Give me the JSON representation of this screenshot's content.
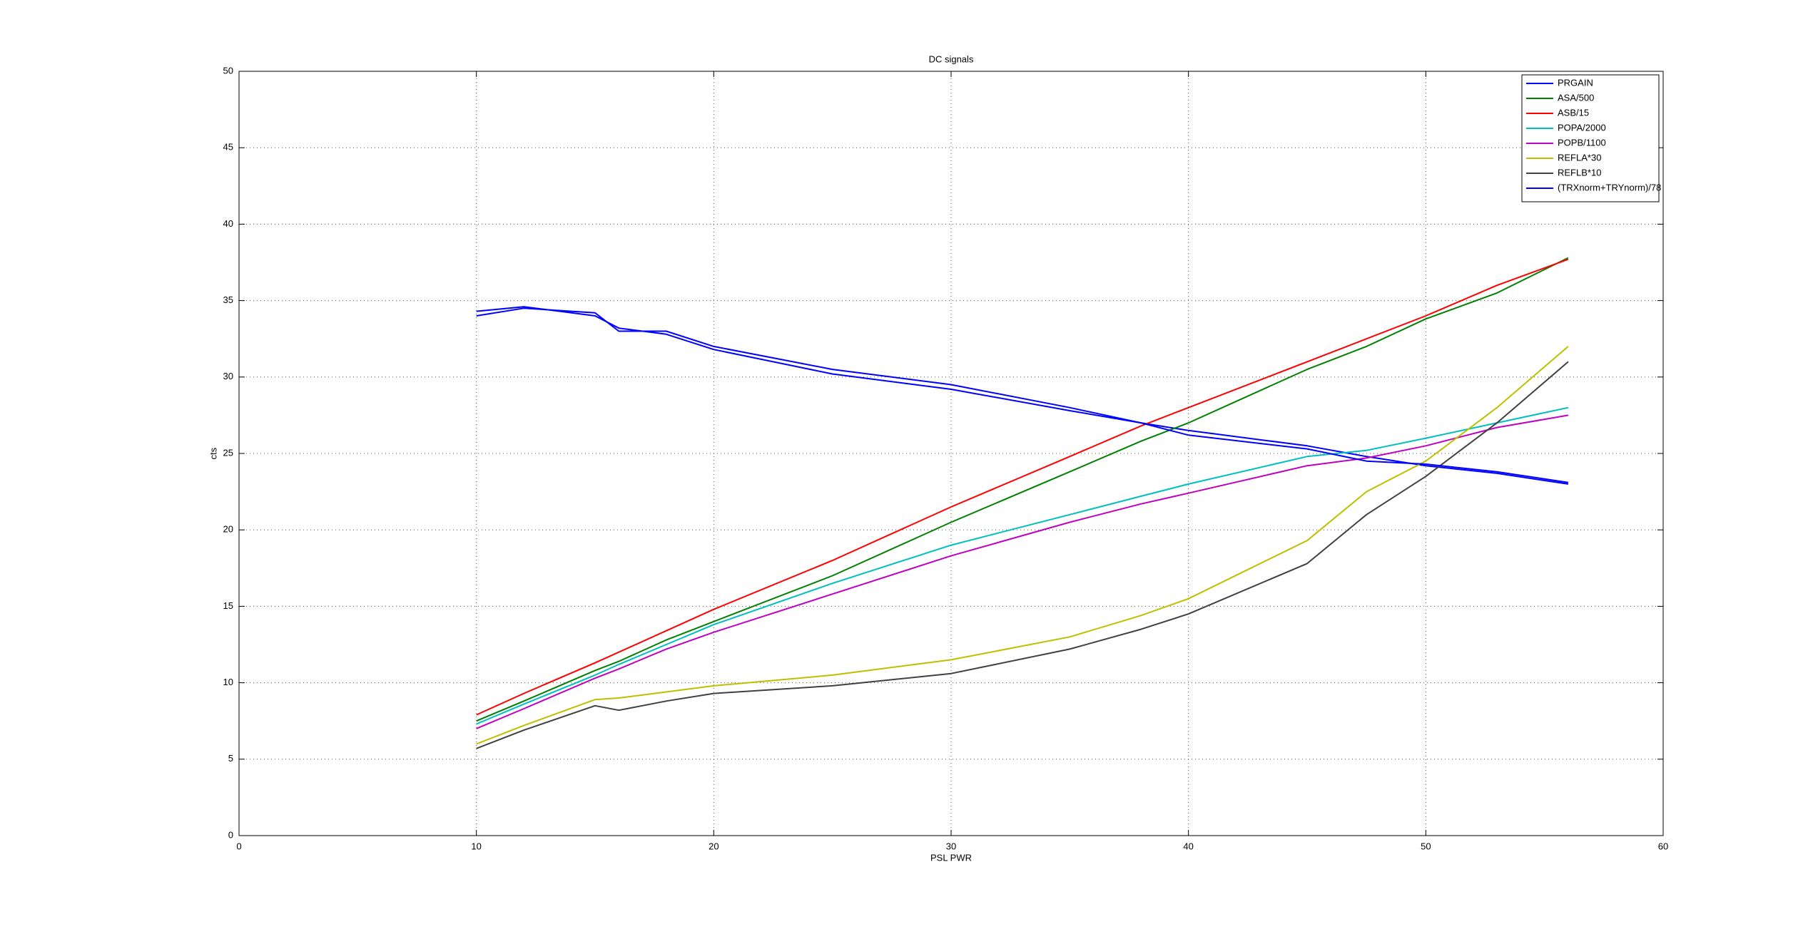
{
  "chart_data": {
    "type": "line",
    "title": "DC signals",
    "x_label": "PSL PWR",
    "y_label": "cts",
    "x": [
      10,
      12,
      15,
      16,
      18,
      20,
      25,
      30,
      35,
      38,
      40,
      45,
      47.5,
      50,
      53,
      56
    ],
    "series": [
      {
        "name": "PRGAIN",
        "color": "#0000ff",
        "values": [
          34,
          34.5,
          34.2,
          33,
          33,
          32,
          30.5,
          29.5,
          28,
          27,
          26.5,
          25.5,
          24.8,
          24.2,
          23.7,
          23
        ]
      },
      {
        "name": "ASA/500",
        "color": "#008000",
        "values": [
          7.5,
          8.8,
          10.8,
          11.4,
          12.8,
          14,
          17,
          20.5,
          23.8,
          25.8,
          27,
          30.5,
          32,
          33.8,
          35.5,
          37.8
        ]
      },
      {
        "name": "ASB/15",
        "color": "#ff0000",
        "values": [
          7.9,
          9.3,
          11.3,
          12,
          13.4,
          14.8,
          18,
          21.5,
          24.8,
          26.8,
          28,
          31,
          32.5,
          34,
          36,
          37.7
        ]
      },
      {
        "name": "POPA/2000",
        "color": "#00bfbf",
        "values": [
          7.3,
          8.6,
          10.5,
          11.2,
          12.5,
          13.8,
          16.5,
          19,
          21,
          22.2,
          23,
          24.8,
          25.2,
          26,
          27,
          28
        ]
      },
      {
        "name": "POPB/1100",
        "color": "#bf00bf",
        "values": [
          7,
          8.3,
          10.3,
          10.9,
          12.2,
          13.3,
          15.8,
          18.3,
          20.5,
          21.7,
          22.4,
          24.2,
          24.7,
          25.5,
          26.7,
          27.5
        ]
      },
      {
        "name": "REFLA*30",
        "color": "#bfbf00",
        "values": [
          6,
          7.2,
          8.9,
          9,
          9.4,
          9.8,
          10.5,
          11.5,
          13,
          14.4,
          15.5,
          19.3,
          22.5,
          24.5,
          28,
          32
        ]
      },
      {
        "name": "REFLB*10",
        "color": "#404040",
        "values": [
          5.7,
          6.9,
          8.5,
          8.2,
          8.8,
          9.3,
          9.8,
          10.6,
          12.2,
          13.5,
          14.5,
          17.8,
          21,
          23.5,
          27,
          31
        ]
      },
      {
        "name": "(TRXnorm+TRYnorm)/78",
        "color": "#0000ff",
        "values": [
          34.3,
          34.6,
          34,
          33.2,
          32.8,
          31.8,
          30.2,
          29.2,
          27.8,
          27,
          26.2,
          25.3,
          24.5,
          24.3,
          23.8,
          23.1
        ]
      }
    ],
    "xlim": [
      0,
      60
    ],
    "xticks": [
      0,
      10,
      20,
      30,
      40,
      50,
      60
    ],
    "ylim": [
      0,
      50
    ],
    "yticks": [
      0,
      5,
      10,
      15,
      20,
      25,
      30,
      35,
      40,
      45,
      50
    ],
    "grid": true,
    "legend": "northeast"
  }
}
